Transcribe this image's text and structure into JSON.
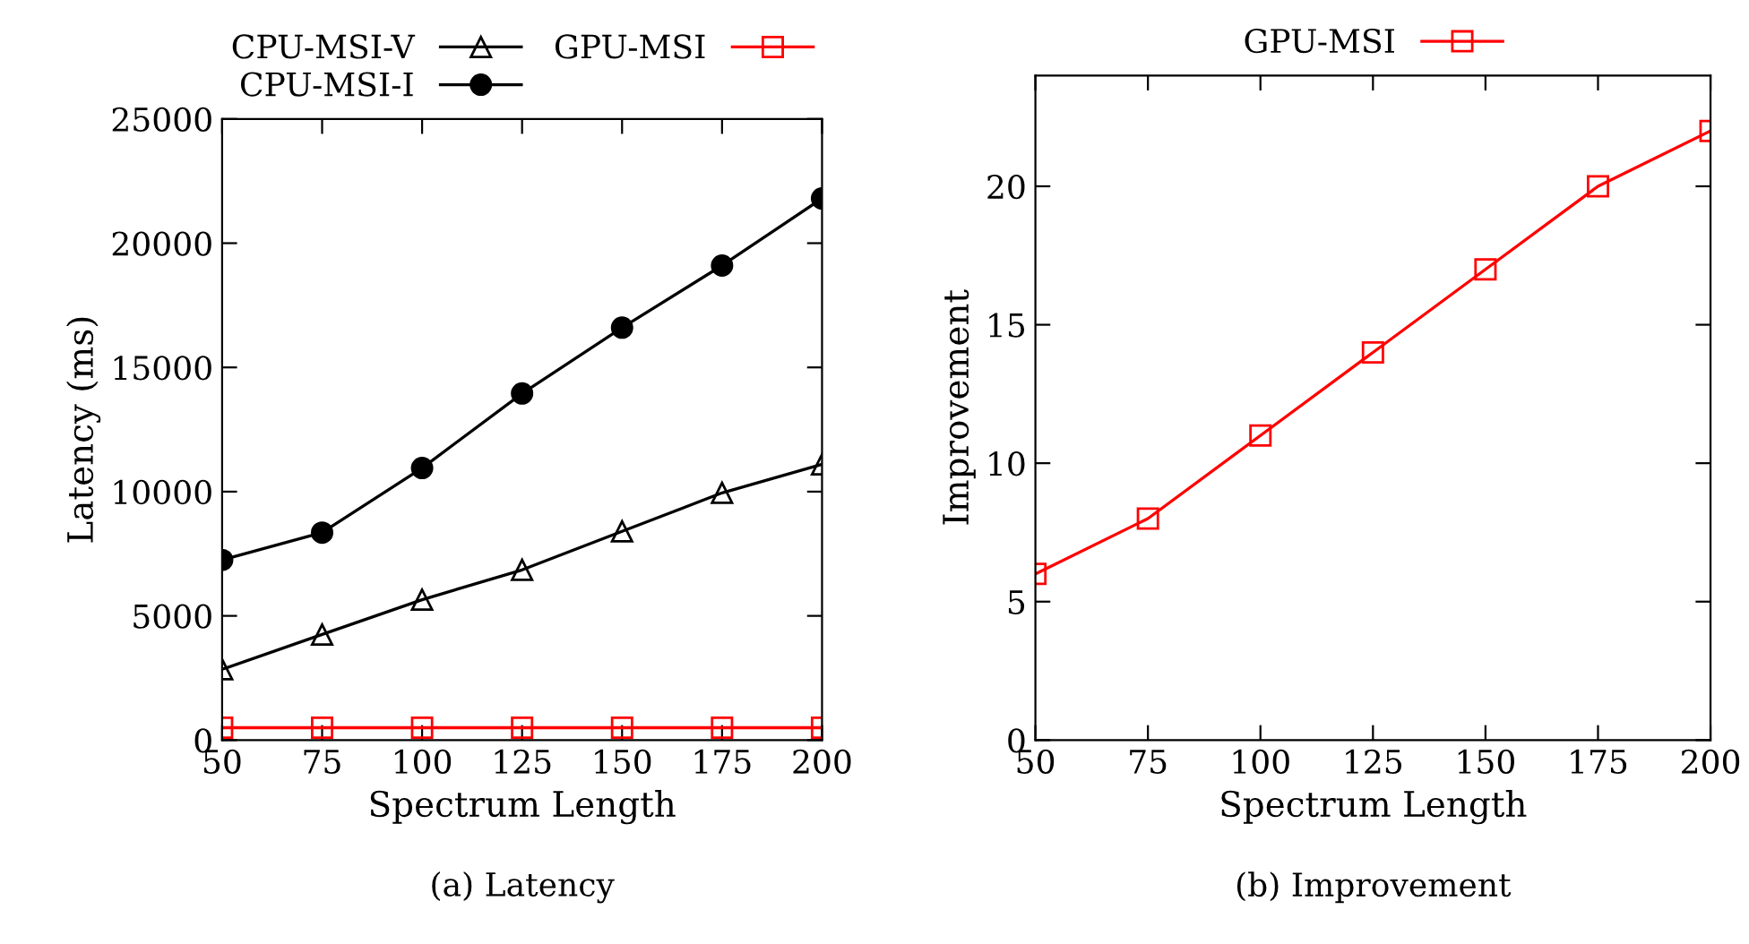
{
  "chart_data": [
    {
      "type": "line",
      "xlabel": "Spectrum Length",
      "ylabel": "Latency (ms)",
      "annotations": [
        "(a) Latency"
      ],
      "x": [
        50,
        75,
        100,
        125,
        150,
        175,
        200
      ],
      "xlim": [
        50,
        200
      ],
      "xticks": [
        50,
        75,
        100,
        125,
        150,
        175,
        200
      ],
      "ylim": [
        0,
        25000
      ],
      "yticks": [
        0,
        5000,
        10000,
        15000,
        20000,
        25000
      ],
      "legend": "top",
      "grid": false,
      "series": [
        {
          "name": "CPU-MSI-V",
          "color": "#000000",
          "marker": "triangle",
          "values": [
            2850,
            4250,
            5650,
            6850,
            8400,
            9950,
            11100
          ]
        },
        {
          "name": "CPU-MSI-I",
          "color": "#000000",
          "marker": "circle",
          "values": [
            7250,
            8350,
            10950,
            13950,
            16600,
            19100,
            21800
          ]
        },
        {
          "name": "GPU-MSI",
          "color": "#ff0000",
          "marker": "square",
          "values": [
            500,
            500,
            500,
            500,
            500,
            500,
            500
          ]
        }
      ]
    },
    {
      "type": "line",
      "xlabel": "Spectrum Length",
      "ylabel": "Improvement",
      "annotations": [
        "(b) Improvement"
      ],
      "x": [
        50,
        75,
        100,
        125,
        150,
        175,
        200
      ],
      "xlim": [
        50,
        200
      ],
      "xticks": [
        50,
        75,
        100,
        125,
        150,
        175,
        200
      ],
      "ylim": [
        0,
        24
      ],
      "yticks": [
        0,
        5,
        10,
        15,
        20
      ],
      "legend": "top",
      "grid": false,
      "series": [
        {
          "name": "GPU-MSI",
          "color": "#ff0000",
          "marker": "square",
          "values": [
            6,
            8,
            11,
            14,
            17,
            20,
            22
          ]
        }
      ]
    }
  ]
}
